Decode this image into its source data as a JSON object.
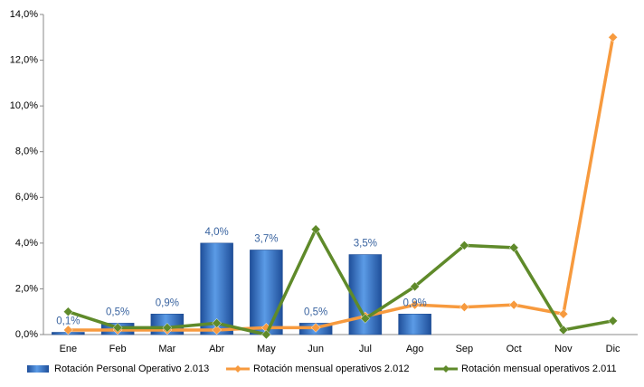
{
  "chart_data": {
    "type": "bar",
    "categories": [
      "Ene",
      "Feb",
      "Mar",
      "Abr",
      "May",
      "Jun",
      "Jul",
      "Ago",
      "Sep",
      "Oct",
      "Nov",
      "Dic"
    ],
    "ylim": [
      0,
      14
    ],
    "yticks": [
      {
        "value": 0,
        "label": "0,0%"
      },
      {
        "value": 2,
        "label": "2,0%"
      },
      {
        "value": 4,
        "label": "4,0%"
      },
      {
        "value": 6,
        "label": "6,0%"
      },
      {
        "value": 8,
        "label": "8,0%"
      },
      {
        "value": 10,
        "label": "10,0%"
      },
      {
        "value": 12,
        "label": "12,0%"
      },
      {
        "value": 14,
        "label": "14,0%"
      }
    ],
    "series": [
      {
        "name": "Rotación Personal Operativo 2.013",
        "type": "bar",
        "color": "#2f6fc4",
        "values": [
          0.1,
          0.5,
          0.9,
          4.0,
          3.7,
          0.5,
          3.5,
          0.9,
          null,
          null,
          null,
          null
        ],
        "value_labels": [
          "0,1%",
          "0,5%",
          "0,9%",
          "4,0%",
          "3,7%",
          "0,5%",
          "3,5%",
          "0,9%",
          null,
          null,
          null,
          null
        ]
      },
      {
        "name": "Rotación mensual operativos 2.012",
        "type": "line",
        "color": "#f79a3e",
        "values": [
          0.2,
          0.2,
          0.2,
          0.2,
          0.3,
          0.3,
          0.8,
          1.3,
          1.2,
          1.3,
          0.9,
          13.0
        ]
      },
      {
        "name": "Rotación mensual operativos 2.011",
        "type": "line",
        "color": "#5f8a2a",
        "values": [
          1.0,
          0.3,
          0.3,
          0.5,
          0.0,
          4.6,
          0.7,
          2.1,
          3.9,
          3.8,
          0.2,
          0.6
        ]
      }
    ]
  }
}
